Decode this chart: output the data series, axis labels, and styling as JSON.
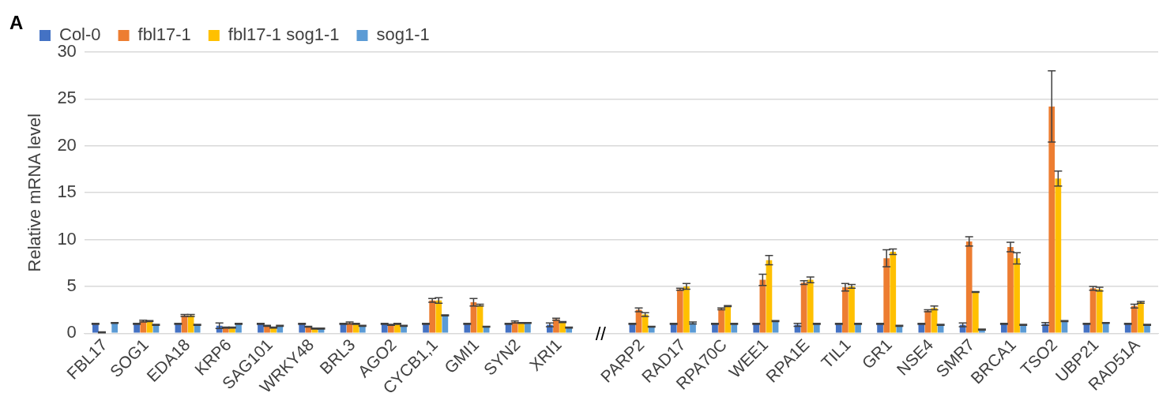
{
  "chart_data": {
    "type": "bar",
    "ylabel": "Relative mRNA level",
    "categories": [
      "FBL17",
      "SOG1",
      "EDA18",
      "KRP6",
      "SAG101",
      "WRKY48",
      "BRL3",
      "AGO2",
      "CYCB1,1",
      "GMI1",
      "SYN2",
      "XRI1",
      null,
      "PARP2",
      "RAD17",
      "RPA70C",
      "WEE1",
      "RPA1E",
      "TIL1",
      "GR1",
      "NSE4",
      "SMR7",
      "BRCA1",
      "TSO2",
      "UBP21",
      "RAD51A"
    ],
    "series": [
      {
        "name": "Col-0",
        "color": "#4472c4",
        "values": [
          1.0,
          1.0,
          1.0,
          0.8,
          1.0,
          1.0,
          1.0,
          1.0,
          1.0,
          1.0,
          1.0,
          0.9,
          null,
          1.0,
          1.0,
          1.0,
          1.0,
          0.9,
          1.0,
          1.0,
          1.0,
          0.9,
          1.0,
          1.0,
          1.0,
          1.0
        ],
        "errors": [
          0.05,
          0.05,
          0.05,
          0.3,
          0.05,
          0.05,
          0.05,
          0.05,
          0.05,
          0.05,
          0.05,
          0.2,
          null,
          0.05,
          0.05,
          0.05,
          0.05,
          0.15,
          0.05,
          0.05,
          0.05,
          0.2,
          0.05,
          0.15,
          0.05,
          0.05
        ]
      },
      {
        "name": "fbl17-1",
        "color": "#ed7d31",
        "values": [
          0.1,
          1.3,
          1.9,
          0.6,
          0.8,
          0.7,
          1.1,
          0.9,
          3.5,
          3.3,
          1.2,
          1.5,
          null,
          2.5,
          4.7,
          2.6,
          5.7,
          5.4,
          4.9,
          8.0,
          2.4,
          9.8,
          9.2,
          24.2,
          4.8,
          2.9
        ],
        "errors": [
          0.05,
          0.1,
          0.1,
          0.05,
          0.05,
          0.05,
          0.1,
          0.05,
          0.2,
          0.4,
          0.1,
          0.1,
          null,
          0.2,
          0.1,
          0.1,
          0.6,
          0.2,
          0.4,
          0.9,
          0.1,
          0.5,
          0.5,
          3.8,
          0.2,
          0.2
        ]
      },
      {
        "name": "fbl17-1 sog1-1",
        "color": "#ffc000",
        "values": [
          0.0,
          1.3,
          1.9,
          0.6,
          0.6,
          0.5,
          1.0,
          1.0,
          3.5,
          3.0,
          1.1,
          1.2,
          null,
          2.0,
          5.0,
          2.9,
          7.8,
          5.7,
          5.0,
          8.7,
          2.7,
          4.4,
          8.0,
          16.5,
          4.7,
          3.3
        ],
        "errors": [
          null,
          0.05,
          0.1,
          0.05,
          0.05,
          0.05,
          0.05,
          0.05,
          0.3,
          0.1,
          0.05,
          0.05,
          null,
          0.2,
          0.3,
          0.05,
          0.5,
          0.3,
          0.2,
          0.3,
          0.2,
          0.05,
          0.6,
          0.8,
          0.2,
          0.1
        ]
      },
      {
        "name": "sog1-1",
        "color": "#5b9bd5",
        "values": [
          1.1,
          0.9,
          0.9,
          1.0,
          0.8,
          0.5,
          0.8,
          0.8,
          1.9,
          0.7,
          1.1,
          0.6,
          null,
          0.7,
          1.1,
          1.0,
          1.3,
          1.0,
          1.0,
          0.8,
          0.9,
          0.4,
          0.9,
          1.3,
          1.1,
          0.9
        ],
        "errors": [
          0.05,
          0.05,
          0.05,
          0.05,
          0.05,
          0.05,
          0.05,
          0.05,
          0.05,
          0.05,
          0.05,
          0.05,
          null,
          0.05,
          0.1,
          0.05,
          0.05,
          0.05,
          0.05,
          0.05,
          0.05,
          0.05,
          0.05,
          0.05,
          0.05,
          0.05
        ]
      }
    ],
    "ylim": [
      0,
      30
    ],
    "yticks": [
      0,
      5,
      10,
      15,
      20,
      25,
      30
    ],
    "grid": "y",
    "legend": "top left",
    "annotations": [
      "A",
      "//"
    ]
  }
}
